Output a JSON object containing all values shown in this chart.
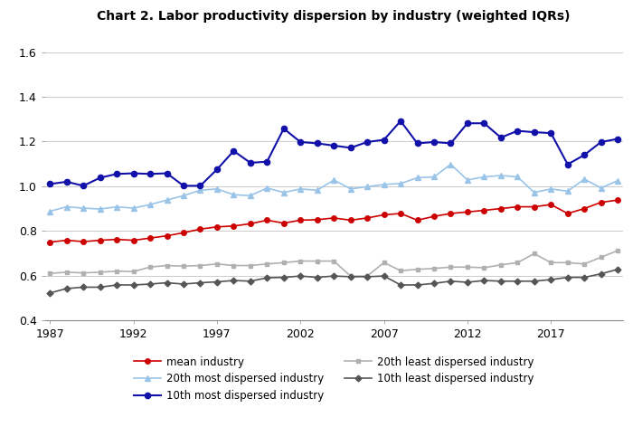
{
  "title": "Chart 2. Labor productivity dispersion by industry (weighted IQRs)",
  "years": [
    1987,
    1988,
    1989,
    1990,
    1991,
    1992,
    1993,
    1994,
    1995,
    1996,
    1997,
    1998,
    1999,
    2000,
    2001,
    2002,
    2003,
    2004,
    2005,
    2006,
    2007,
    2008,
    2009,
    2010,
    2011,
    2012,
    2013,
    2014,
    2015,
    2016,
    2017,
    2018,
    2019,
    2020,
    2021
  ],
  "mean_industry": [
    0.75,
    0.758,
    0.752,
    0.758,
    0.762,
    0.758,
    0.768,
    0.778,
    0.792,
    0.808,
    0.818,
    0.822,
    0.832,
    0.848,
    0.835,
    0.848,
    0.85,
    0.858,
    0.848,
    0.858,
    0.872,
    0.878,
    0.848,
    0.865,
    0.878,
    0.885,
    0.892,
    0.9,
    0.908,
    0.908,
    0.918,
    0.878,
    0.9,
    0.928,
    0.938
  ],
  "top10": [
    1.01,
    1.02,
    1.002,
    1.038,
    1.055,
    1.058,
    1.055,
    1.058,
    1.002,
    1.002,
    1.075,
    1.158,
    1.105,
    1.11,
    1.258,
    1.198,
    1.192,
    1.182,
    1.172,
    1.198,
    1.208,
    1.292,
    1.192,
    1.198,
    1.192,
    1.282,
    1.282,
    1.218,
    1.248,
    1.242,
    1.238,
    1.098,
    1.14,
    1.198,
    1.212
  ],
  "top20": [
    0.888,
    0.908,
    0.902,
    0.898,
    0.908,
    0.902,
    0.918,
    0.938,
    0.958,
    0.982,
    0.988,
    0.962,
    0.958,
    0.992,
    0.972,
    0.988,
    0.982,
    1.028,
    0.988,
    0.998,
    1.008,
    1.012,
    1.038,
    1.042,
    1.098,
    1.028,
    1.042,
    1.048,
    1.042,
    0.972,
    0.988,
    0.978,
    1.032,
    0.992,
    1.025
  ],
  "bot10": [
    0.522,
    0.542,
    0.548,
    0.548,
    0.558,
    0.558,
    0.562,
    0.568,
    0.562,
    0.568,
    0.572,
    0.578,
    0.575,
    0.59,
    0.592,
    0.598,
    0.592,
    0.598,
    0.595,
    0.595,
    0.598,
    0.558,
    0.558,
    0.565,
    0.575,
    0.57,
    0.578,
    0.575,
    0.575,
    0.575,
    0.582,
    0.592,
    0.592,
    0.608,
    0.628
  ],
  "bot20": [
    0.61,
    0.615,
    0.612,
    0.615,
    0.62,
    0.618,
    0.638,
    0.645,
    0.642,
    0.645,
    0.652,
    0.645,
    0.645,
    0.652,
    0.658,
    0.665,
    0.665,
    0.665,
    0.598,
    0.598,
    0.658,
    0.622,
    0.628,
    0.632,
    0.638,
    0.638,
    0.635,
    0.648,
    0.658,
    0.698,
    0.658,
    0.658,
    0.652,
    0.682,
    0.712
  ],
  "mean_color": "#cc0000",
  "top10_color": "#1111aa",
  "top20_color": "#99c4e8",
  "bot10_color": "#555555",
  "bot20_color": "#b0b0b0",
  "xlim": [
    1987,
    2021
  ],
  "ylim": [
    0.4,
    1.7
  ],
  "yticks": [
    0.4,
    0.6,
    0.8,
    1.0,
    1.2,
    1.4,
    1.6
  ],
  "xticks": [
    1987,
    1992,
    1997,
    2002,
    2007,
    2012,
    2017
  ],
  "background_color": "#ffffff",
  "grid_color": "#cccccc"
}
